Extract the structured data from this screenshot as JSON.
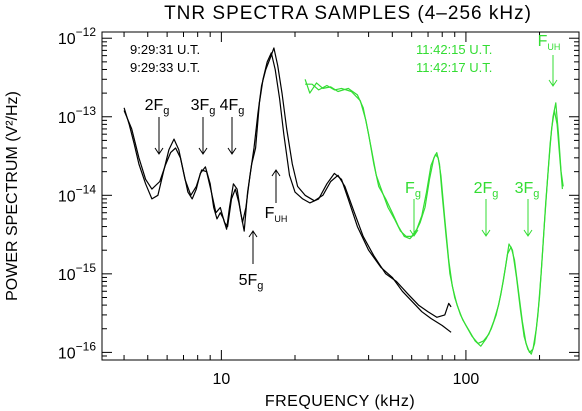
{
  "chart_data": {
    "type": "line",
    "title": "TNR SPECTRA SAMPLES (4–256 kHz)",
    "xlabel": "FREQUENCY (kHz)",
    "ylabel": "POWER SPECTRUM (V²/Hz)",
    "xscale": "log",
    "yscale": "log",
    "xlim": [
      3.25,
      290
    ],
    "ylim": [
      8e-17,
      1.2e-12
    ],
    "x_ticks": [
      {
        "value": 10,
        "label": "10"
      },
      {
        "value": 100,
        "label": "100"
      }
    ],
    "y_ticks": [
      {
        "value": 1e-16,
        "base": "10",
        "exp": "−16"
      },
      {
        "value": 1e-15,
        "base": "10",
        "exp": "−15"
      },
      {
        "value": 1e-14,
        "base": "10",
        "exp": "−14"
      },
      {
        "value": 1e-13,
        "base": "10",
        "exp": "−13"
      },
      {
        "value": 1e-12,
        "base": "10",
        "exp": "−12"
      }
    ],
    "grid": false,
    "colors": {
      "black": "#000000",
      "green": "#33dd33"
    },
    "legend": [
      {
        "text": "9:29:31 U.T.",
        "color": "#000000"
      },
      {
        "text": "9:29:33 U.T.",
        "color": "#000000"
      },
      {
        "text": "11:42:15 U.T.",
        "color": "#33dd33"
      },
      {
        "text": "11:42:17 U.T.",
        "color": "#33dd33"
      }
    ],
    "series": [
      {
        "color": "#000000",
        "points": [
          [
            4.0,
            1.3e-13
          ],
          [
            4.2,
            8e-14
          ],
          [
            4.4,
            4.5e-14
          ],
          [
            4.6,
            2.5e-14
          ],
          [
            4.9,
            1.4e-14
          ],
          [
            5.2,
            9e-15
          ],
          [
            5.5,
            1e-14
          ],
          [
            5.8,
            2e-14
          ],
          [
            6.1,
            3.8e-14
          ],
          [
            6.4,
            5.2e-14
          ],
          [
            6.7,
            3.8e-14
          ],
          [
            7.0,
            2e-14
          ],
          [
            7.3,
            1.1e-14
          ],
          [
            7.6,
            9e-15
          ],
          [
            7.9,
            1.2e-14
          ],
          [
            8.2,
            1.9e-14
          ],
          [
            8.6,
            2.3e-14
          ],
          [
            9.0,
            1.4e-14
          ],
          [
            9.3,
            7e-15
          ],
          [
            9.6,
            5e-15
          ],
          [
            9.9,
            6e-15
          ],
          [
            10.2,
            5e-15
          ],
          [
            10.5,
            3.7e-15
          ],
          [
            10.8,
            7e-15
          ],
          [
            11.2,
            1.4e-14
          ],
          [
            11.6,
            1.2e-14
          ],
          [
            12.0,
            6e-15
          ],
          [
            12.4,
            3.5e-15
          ],
          [
            12.8,
            1.1e-14
          ],
          [
            13.3,
            2.5e-14
          ],
          [
            13.8,
            4e-14
          ],
          [
            14.3,
            1.5e-13
          ],
          [
            14.8,
            3e-13
          ],
          [
            15.4,
            5e-13
          ],
          [
            16.0,
            6.5e-13
          ],
          [
            16.6,
            4e-13
          ],
          [
            17.3,
            1.7e-13
          ],
          [
            18.0,
            6e-14
          ],
          [
            19.0,
            1.8e-14
          ],
          [
            20.0,
            1.1e-14
          ],
          [
            21.5,
            9e-15
          ],
          [
            23.0,
            8e-15
          ],
          [
            25.0,
            9e-15
          ],
          [
            27.0,
            1.4e-14
          ],
          [
            29.0,
            1.9e-14
          ],
          [
            31.0,
            1.6e-14
          ],
          [
            33.0,
            9e-15
          ],
          [
            36.0,
            4e-15
          ],
          [
            40.0,
            2e-15
          ],
          [
            45.0,
            1.2e-15
          ],
          [
            50.0,
            9e-16
          ],
          [
            55.0,
            6e-16
          ],
          [
            60.0,
            4.5e-16
          ],
          [
            66.0,
            3.3e-16
          ],
          [
            72.0,
            2.7e-16
          ],
          [
            80.0,
            2.2e-16
          ],
          [
            87.0,
            1.8e-16
          ]
        ]
      },
      {
        "color": "#000000",
        "points": [
          [
            4.0,
            1.2e-13
          ],
          [
            4.3,
            7e-14
          ],
          [
            4.6,
            3e-14
          ],
          [
            4.9,
            1.6e-14
          ],
          [
            5.2,
            1.2e-14
          ],
          [
            5.6,
            1.5e-14
          ],
          [
            5.9,
            2.4e-14
          ],
          [
            6.2,
            3.5e-14
          ],
          [
            6.5,
            4e-14
          ],
          [
            6.8,
            3e-14
          ],
          [
            7.1,
            1.6e-14
          ],
          [
            7.5,
            1e-14
          ],
          [
            7.9,
            1.3e-14
          ],
          [
            8.3,
            2.1e-14
          ],
          [
            8.7,
            2e-14
          ],
          [
            9.1,
            1.1e-14
          ],
          [
            9.5,
            6e-15
          ],
          [
            9.9,
            7e-15
          ],
          [
            10.3,
            4.5e-15
          ],
          [
            10.6,
            4e-15
          ],
          [
            11.0,
            9e-15
          ],
          [
            11.4,
            1.2e-14
          ],
          [
            11.8,
            8e-15
          ],
          [
            12.2,
            4.5e-15
          ],
          [
            12.6,
            7e-15
          ],
          [
            13.1,
            1.8e-14
          ],
          [
            13.6,
            4e-14
          ],
          [
            14.1,
            1.1e-13
          ],
          [
            14.6,
            2.5e-13
          ],
          [
            15.2,
            4e-13
          ],
          [
            15.8,
            5.5e-13
          ],
          [
            16.4,
            7.5e-13
          ],
          [
            17.0,
            4.5e-13
          ],
          [
            17.7,
            2e-13
          ],
          [
            18.5,
            7e-14
          ],
          [
            19.5,
            2.5e-14
          ],
          [
            20.5,
            1.3e-14
          ],
          [
            22.0,
            1e-14
          ],
          [
            24.0,
            8.5e-15
          ],
          [
            26.0,
            1e-14
          ],
          [
            28.0,
            1.5e-14
          ],
          [
            30.0,
            1.8e-14
          ],
          [
            32.0,
            1.3e-14
          ],
          [
            35.0,
            6e-15
          ],
          [
            38.0,
            3e-15
          ],
          [
            42.0,
            1.7e-15
          ],
          [
            47.0,
            1e-15
          ],
          [
            52.0,
            8e-16
          ],
          [
            58.0,
            5.5e-16
          ],
          [
            64.0,
            4e-16
          ],
          [
            70.0,
            3.3e-16
          ],
          [
            76.0,
            2.8e-16
          ],
          [
            82.0,
            3e-16
          ],
          [
            85.0,
            4.2e-16
          ],
          [
            87.0,
            3.8e-16
          ]
        ]
      },
      {
        "color": "#33dd33",
        "points": [
          [
            22.0,
            3e-13
          ],
          [
            23.0,
            2e-13
          ],
          [
            24.5,
            2.7e-13
          ],
          [
            26.0,
            2.3e-13
          ],
          [
            28.0,
            2.4e-13
          ],
          [
            30.0,
            2.1e-13
          ],
          [
            33.0,
            2.3e-13
          ],
          [
            36.0,
            1.9e-13
          ],
          [
            38.0,
            1.3e-13
          ],
          [
            40.0,
            6e-14
          ],
          [
            42.0,
            2.5e-14
          ],
          [
            44.0,
            1.3e-14
          ],
          [
            47.0,
            9e-15
          ],
          [
            50.0,
            6e-15
          ],
          [
            53.0,
            4e-15
          ],
          [
            56.0,
            3e-15
          ],
          [
            59.0,
            2.8e-15
          ],
          [
            62.0,
            3.3e-15
          ],
          [
            65.0,
            4.5e-15
          ],
          [
            68.0,
            7e-15
          ],
          [
            71.0,
            1.6e-14
          ],
          [
            74.0,
            3e-14
          ],
          [
            76.0,
            3.5e-14
          ],
          [
            78.0,
            2.5e-14
          ],
          [
            80.0,
            1e-14
          ],
          [
            83.0,
            3e-15
          ],
          [
            86.0,
            1e-15
          ],
          [
            90.0,
            5e-16
          ],
          [
            95.0,
            3e-16
          ],
          [
            100.0,
            2.2e-16
          ],
          [
            106.0,
            1.6e-16
          ],
          [
            112.0,
            1.3e-16
          ],
          [
            118.0,
            1.4e-16
          ],
          [
            124.0,
            1.7e-16
          ],
          [
            130.0,
            2.5e-16
          ],
          [
            136.0,
            4e-16
          ],
          [
            142.0,
            8e-16
          ],
          [
            148.0,
            1.8e-15
          ],
          [
            153.0,
            2.2e-15
          ],
          [
            158.0,
            1.5e-15
          ],
          [
            164.0,
            6e-16
          ],
          [
            170.0,
            2.5e-16
          ],
          [
            176.0,
            1.3e-16
          ],
          [
            182.0,
            1e-16
          ],
          [
            188.0,
            1.1e-16
          ],
          [
            194.0,
            2e-16
          ],
          [
            200.0,
            5e-16
          ],
          [
            206.0,
            2e-15
          ],
          [
            212.0,
            8e-15
          ],
          [
            218.0,
            2.5e-14
          ],
          [
            224.0,
            7e-14
          ],
          [
            230.0,
            1.2e-13
          ],
          [
            236.0,
            8e-14
          ],
          [
            242.0,
            3e-14
          ],
          [
            248.0,
            1.2e-14
          ]
        ]
      },
      {
        "color": "#33dd33",
        "points": [
          [
            22.0,
            2.6e-13
          ],
          [
            23.5,
            2.6e-13
          ],
          [
            25.0,
            2.2e-13
          ],
          [
            27.0,
            2.5e-13
          ],
          [
            29.0,
            2.2e-13
          ],
          [
            31.0,
            2.3e-13
          ],
          [
            34.0,
            2.1e-13
          ],
          [
            37.0,
            1.6e-13
          ],
          [
            39.0,
            9e-14
          ],
          [
            41.0,
            4e-14
          ],
          [
            43.0,
            1.8e-14
          ],
          [
            45.5,
            1.1e-14
          ],
          [
            48.0,
            7e-15
          ],
          [
            51.0,
            5e-15
          ],
          [
            54.0,
            3.5e-15
          ],
          [
            57.0,
            3e-15
          ],
          [
            60.0,
            3e-15
          ],
          [
            63.0,
            3.7e-15
          ],
          [
            66.0,
            5.5e-15
          ],
          [
            69.0,
            1.1e-14
          ],
          [
            72.0,
            2.4e-14
          ],
          [
            75.0,
            3.3e-14
          ],
          [
            77.0,
            3e-14
          ],
          [
            79.0,
            1.8e-14
          ],
          [
            82.0,
            5e-15
          ],
          [
            85.0,
            1.5e-15
          ],
          [
            88.0,
            7e-16
          ],
          [
            92.0,
            4e-16
          ],
          [
            97.0,
            2.6e-16
          ],
          [
            103.0,
            1.9e-16
          ],
          [
            109.0,
            1.4e-16
          ],
          [
            115.0,
            1.2e-16
          ],
          [
            121.0,
            1.5e-16
          ],
          [
            127.0,
            2e-16
          ],
          [
            133.0,
            3e-16
          ],
          [
            139.0,
            5.5e-16
          ],
          [
            145.0,
            1.2e-15
          ],
          [
            150.0,
            2.4e-15
          ],
          [
            155.0,
            2e-15
          ],
          [
            161.0,
            9e-16
          ],
          [
            167.0,
            3.5e-16
          ],
          [
            173.0,
            1.6e-16
          ],
          [
            179.0,
            1.1e-16
          ],
          [
            185.0,
            9.5e-17
          ],
          [
            191.0,
            1.3e-16
          ],
          [
            197.0,
            3e-16
          ],
          [
            203.0,
            1e-15
          ],
          [
            209.0,
            4e-15
          ],
          [
            215.0,
            1.4e-14
          ],
          [
            221.0,
            4.5e-14
          ],
          [
            227.0,
            1e-13
          ],
          [
            233.0,
            1.5e-13
          ],
          [
            239.0,
            6e-14
          ],
          [
            245.0,
            2e-14
          ],
          [
            250.0,
            1.3e-14
          ]
        ]
      }
    ],
    "annotations": [
      {
        "main": "2F",
        "sub": "g",
        "color": "#000000",
        "arrow": "down"
      },
      {
        "main": "3F",
        "sub": "g",
        "color": "#000000",
        "arrow": "down"
      },
      {
        "main": "4F",
        "sub": "g",
        "color": "#000000",
        "arrow": "down"
      },
      {
        "main": "5F",
        "sub": "g",
        "color": "#000000",
        "arrow": "up"
      },
      {
        "main": "F",
        "sub": "UH",
        "color": "#000000",
        "arrow": "up"
      },
      {
        "main": "F",
        "sub": "g",
        "color": "#33dd33",
        "arrow": "down"
      },
      {
        "main": "2F",
        "sub": "g",
        "color": "#33dd33",
        "arrow": "down"
      },
      {
        "main": "3F",
        "sub": "g",
        "color": "#33dd33",
        "arrow": "down"
      },
      {
        "main": "F",
        "sub": "UH",
        "color": "#33dd33",
        "arrow": "down"
      }
    ]
  }
}
